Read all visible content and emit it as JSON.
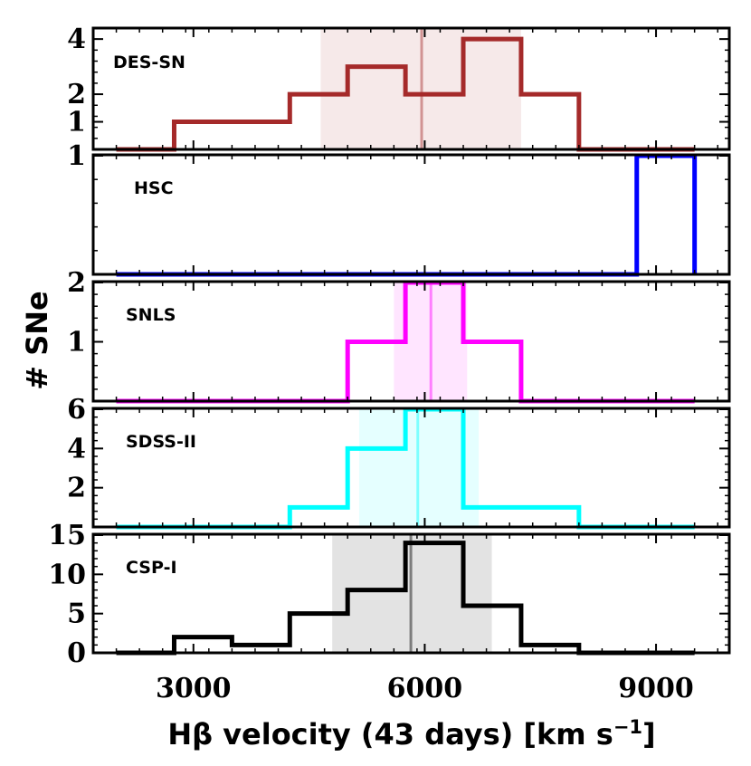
{
  "chart_data": {
    "type": "histogram",
    "xlabel": "Hβ velocity (43 days) [km s⁻¹]",
    "xlabel_parts": {
      "main": "Hβ velocity (43 days) [km s",
      "superscript": "−1",
      "end": "]"
    },
    "ylabel": "# SNe",
    "xlim": [
      1700,
      9950
    ],
    "x_ticks": [
      3000,
      6000,
      9000
    ],
    "bin_edges": [
      2000,
      2750,
      3500,
      4250,
      5000,
      5750,
      6500,
      7250,
      8000,
      8750,
      9500
    ],
    "panels": [
      {
        "name": "DES-SN",
        "color": "#a52a2a",
        "counts": [
          0,
          1,
          1,
          2,
          3,
          2,
          4,
          2,
          0,
          0
        ],
        "y_ticks": [
          1,
          2,
          4
        ],
        "y_tick_labels": [
          "1",
          "2",
          "4"
        ],
        "ylim": [
          0,
          4.3
        ],
        "mean": 5960,
        "band": [
          4650,
          7250
        ]
      },
      {
        "name": "HSC",
        "color": "#0000ff",
        "counts": [
          0,
          0,
          0,
          0,
          0,
          0,
          0,
          0,
          0,
          1
        ],
        "y_ticks": [
          1
        ],
        "y_tick_labels": [
          "1"
        ],
        "ylim": [
          0,
          1.0
        ],
        "mean": null,
        "band": null
      },
      {
        "name": "SNLS",
        "color": "#ff00ff",
        "counts": [
          0,
          0,
          0,
          0,
          1,
          2,
          1,
          0,
          0,
          0
        ],
        "y_ticks": [
          1,
          2
        ],
        "y_tick_labels": [
          "1",
          "2"
        ],
        "ylim": [
          0,
          2.0
        ],
        "mean": 6080,
        "band": [
          5600,
          6550
        ]
      },
      {
        "name": "SDSS-II",
        "color": "#00ffff",
        "counts": [
          0,
          0,
          0,
          1,
          4,
          6,
          1,
          1,
          0,
          0
        ],
        "y_ticks": [
          2,
          4,
          6
        ],
        "y_tick_labels": [
          "2",
          "4",
          "6"
        ],
        "ylim": [
          0,
          6.0
        ],
        "mean": 5910,
        "band": [
          5150,
          6700
        ]
      },
      {
        "name": "CSP-I",
        "color": "#000000",
        "counts": [
          0,
          2,
          1,
          5,
          8,
          14,
          6,
          1,
          0,
          0
        ],
        "y_ticks": [
          0,
          5,
          10,
          15
        ],
        "y_tick_labels": [
          "0",
          "5",
          "10",
          "15"
        ],
        "ylim": [
          0,
          15.0
        ],
        "mean": 5820,
        "band": [
          4800,
          6870
        ]
      }
    ]
  }
}
